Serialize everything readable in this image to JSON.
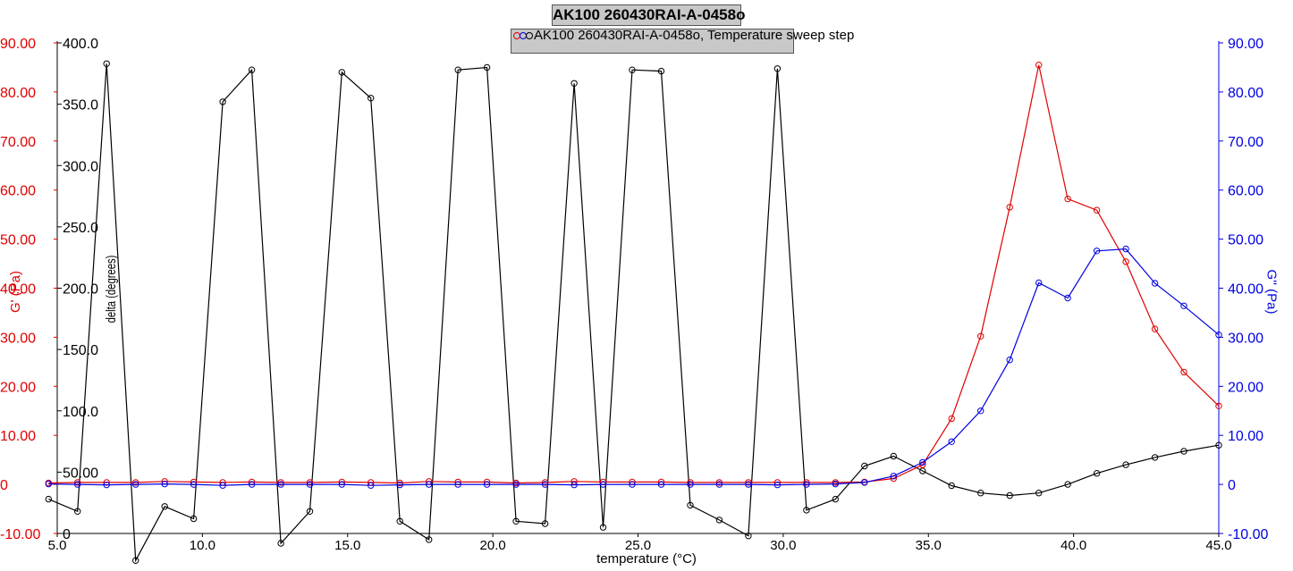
{
  "title": "AK100 260430RAI-A-0458o",
  "legend": "AK100 260430RAI-A-0458o, Temperature sweep step",
  "chart_data": {
    "type": "line",
    "title": "AK100 260430RAI-A-0458o",
    "xlabel": "temperature (°C)",
    "xlim": [
      5.0,
      45.0
    ],
    "x_ticks": [
      "5.0",
      "10.0",
      "15.0",
      "20.0",
      "25.0",
      "30.0",
      "35.0",
      "40.0",
      "45.0"
    ],
    "axes": {
      "left_red": {
        "label": "G' (Pa)",
        "range": [
          -10,
          90
        ],
        "ticks": [
          "-10.00",
          "0",
          "10.00",
          "20.00",
          "30.00",
          "40.00",
          "50.00",
          "60.00",
          "70.00",
          "80.00",
          "90.00"
        ],
        "color": "#e00000"
      },
      "left_black": {
        "label": "delta (degrees)",
        "range": [
          0,
          400
        ],
        "ticks": [
          "0",
          "50.00",
          "100.0",
          "150.0",
          "200.0",
          "250.0",
          "300.0",
          "350.0",
          "400.0"
        ],
        "color": "#000000"
      },
      "right_blue": {
        "label": "G'' (Pa)",
        "range": [
          -10,
          90
        ],
        "ticks": [
          "-10.00",
          "0",
          "10.00",
          "20.00",
          "30.00",
          "40.00",
          "50.00",
          "60.00",
          "70.00",
          "80.00",
          "90.00"
        ],
        "color": "#0000e0"
      }
    },
    "x": [
      4.7,
      5.7,
      6.7,
      7.7,
      8.7,
      9.7,
      10.7,
      11.7,
      12.7,
      13.7,
      14.8,
      15.8,
      16.8,
      17.8,
      18.8,
      19.8,
      20.8,
      21.8,
      22.8,
      23.8,
      24.8,
      25.8,
      26.8,
      27.8,
      28.8,
      29.8,
      30.8,
      31.8,
      32.8,
      33.8,
      34.8,
      35.8,
      36.8,
      37.8,
      38.8,
      39.8,
      40.8,
      41.8,
      42.8,
      43.8,
      45.0
    ],
    "series": [
      {
        "name": "G'",
        "axis": "left_red",
        "color": "#e00000",
        "values": [
          0.3,
          0.4,
          0.4,
          0.4,
          0.6,
          0.5,
          0.4,
          0.5,
          0.4,
          0.4,
          0.5,
          0.4,
          0.3,
          0.6,
          0.5,
          0.5,
          0.3,
          0.4,
          0.6,
          0.5,
          0.5,
          0.5,
          0.4,
          0.4,
          0.4,
          0.4,
          0.4,
          0.4,
          0.5,
          1.2,
          4.0,
          13.4,
          30.2,
          56.5,
          85.5,
          58.2,
          55.9,
          45.4,
          31.7,
          22.9,
          16.0
        ]
      },
      {
        "name": "G''",
        "axis": "right_blue",
        "color": "#0000e0",
        "values": [
          0.1,
          0.0,
          -0.1,
          0.0,
          0.1,
          0.0,
          -0.2,
          0.0,
          0.0,
          0.0,
          0.0,
          -0.2,
          -0.1,
          0.0,
          0.0,
          0.0,
          0.0,
          0.0,
          -0.1,
          0.0,
          0.0,
          0.0,
          0.0,
          0.0,
          0.0,
          -0.1,
          0.0,
          0.1,
          0.4,
          1.7,
          4.5,
          8.7,
          15.0,
          25.4,
          41.1,
          38.0,
          47.6,
          48.0,
          41.0,
          36.4,
          30.5
        ]
      },
      {
        "name": "delta",
        "axis": "left_black",
        "color": "#000000",
        "values": [
          28,
          18,
          383,
          -22,
          22,
          12,
          352,
          378,
          -8,
          18,
          376,
          355,
          10,
          -5,
          378,
          380,
          10,
          8,
          367,
          5,
          378,
          377,
          23,
          11,
          -2,
          379,
          19,
          28,
          55,
          63,
          51,
          39,
          33,
          31,
          33,
          40,
          49,
          56,
          62,
          67,
          72
        ]
      }
    ]
  }
}
